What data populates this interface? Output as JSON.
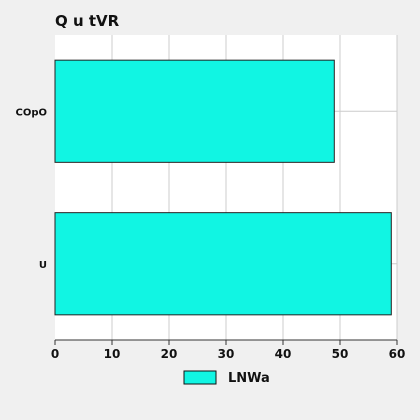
{
  "chart_data": {
    "type": "bar",
    "orientation": "horizontal",
    "title": "Q u tVR",
    "categories": [
      "COpO",
      "U"
    ],
    "series": [
      {
        "name": "LNWa",
        "values": [
          49,
          59
        ],
        "color": "#11f5e3"
      }
    ],
    "xlim": [
      0,
      60
    ],
    "xticks": [
      "0",
      "10",
      "20",
      "30",
      "40",
      "50",
      "60"
    ],
    "xlabel": "",
    "ylabel": "",
    "grid": true,
    "legend_position": "bottom"
  }
}
